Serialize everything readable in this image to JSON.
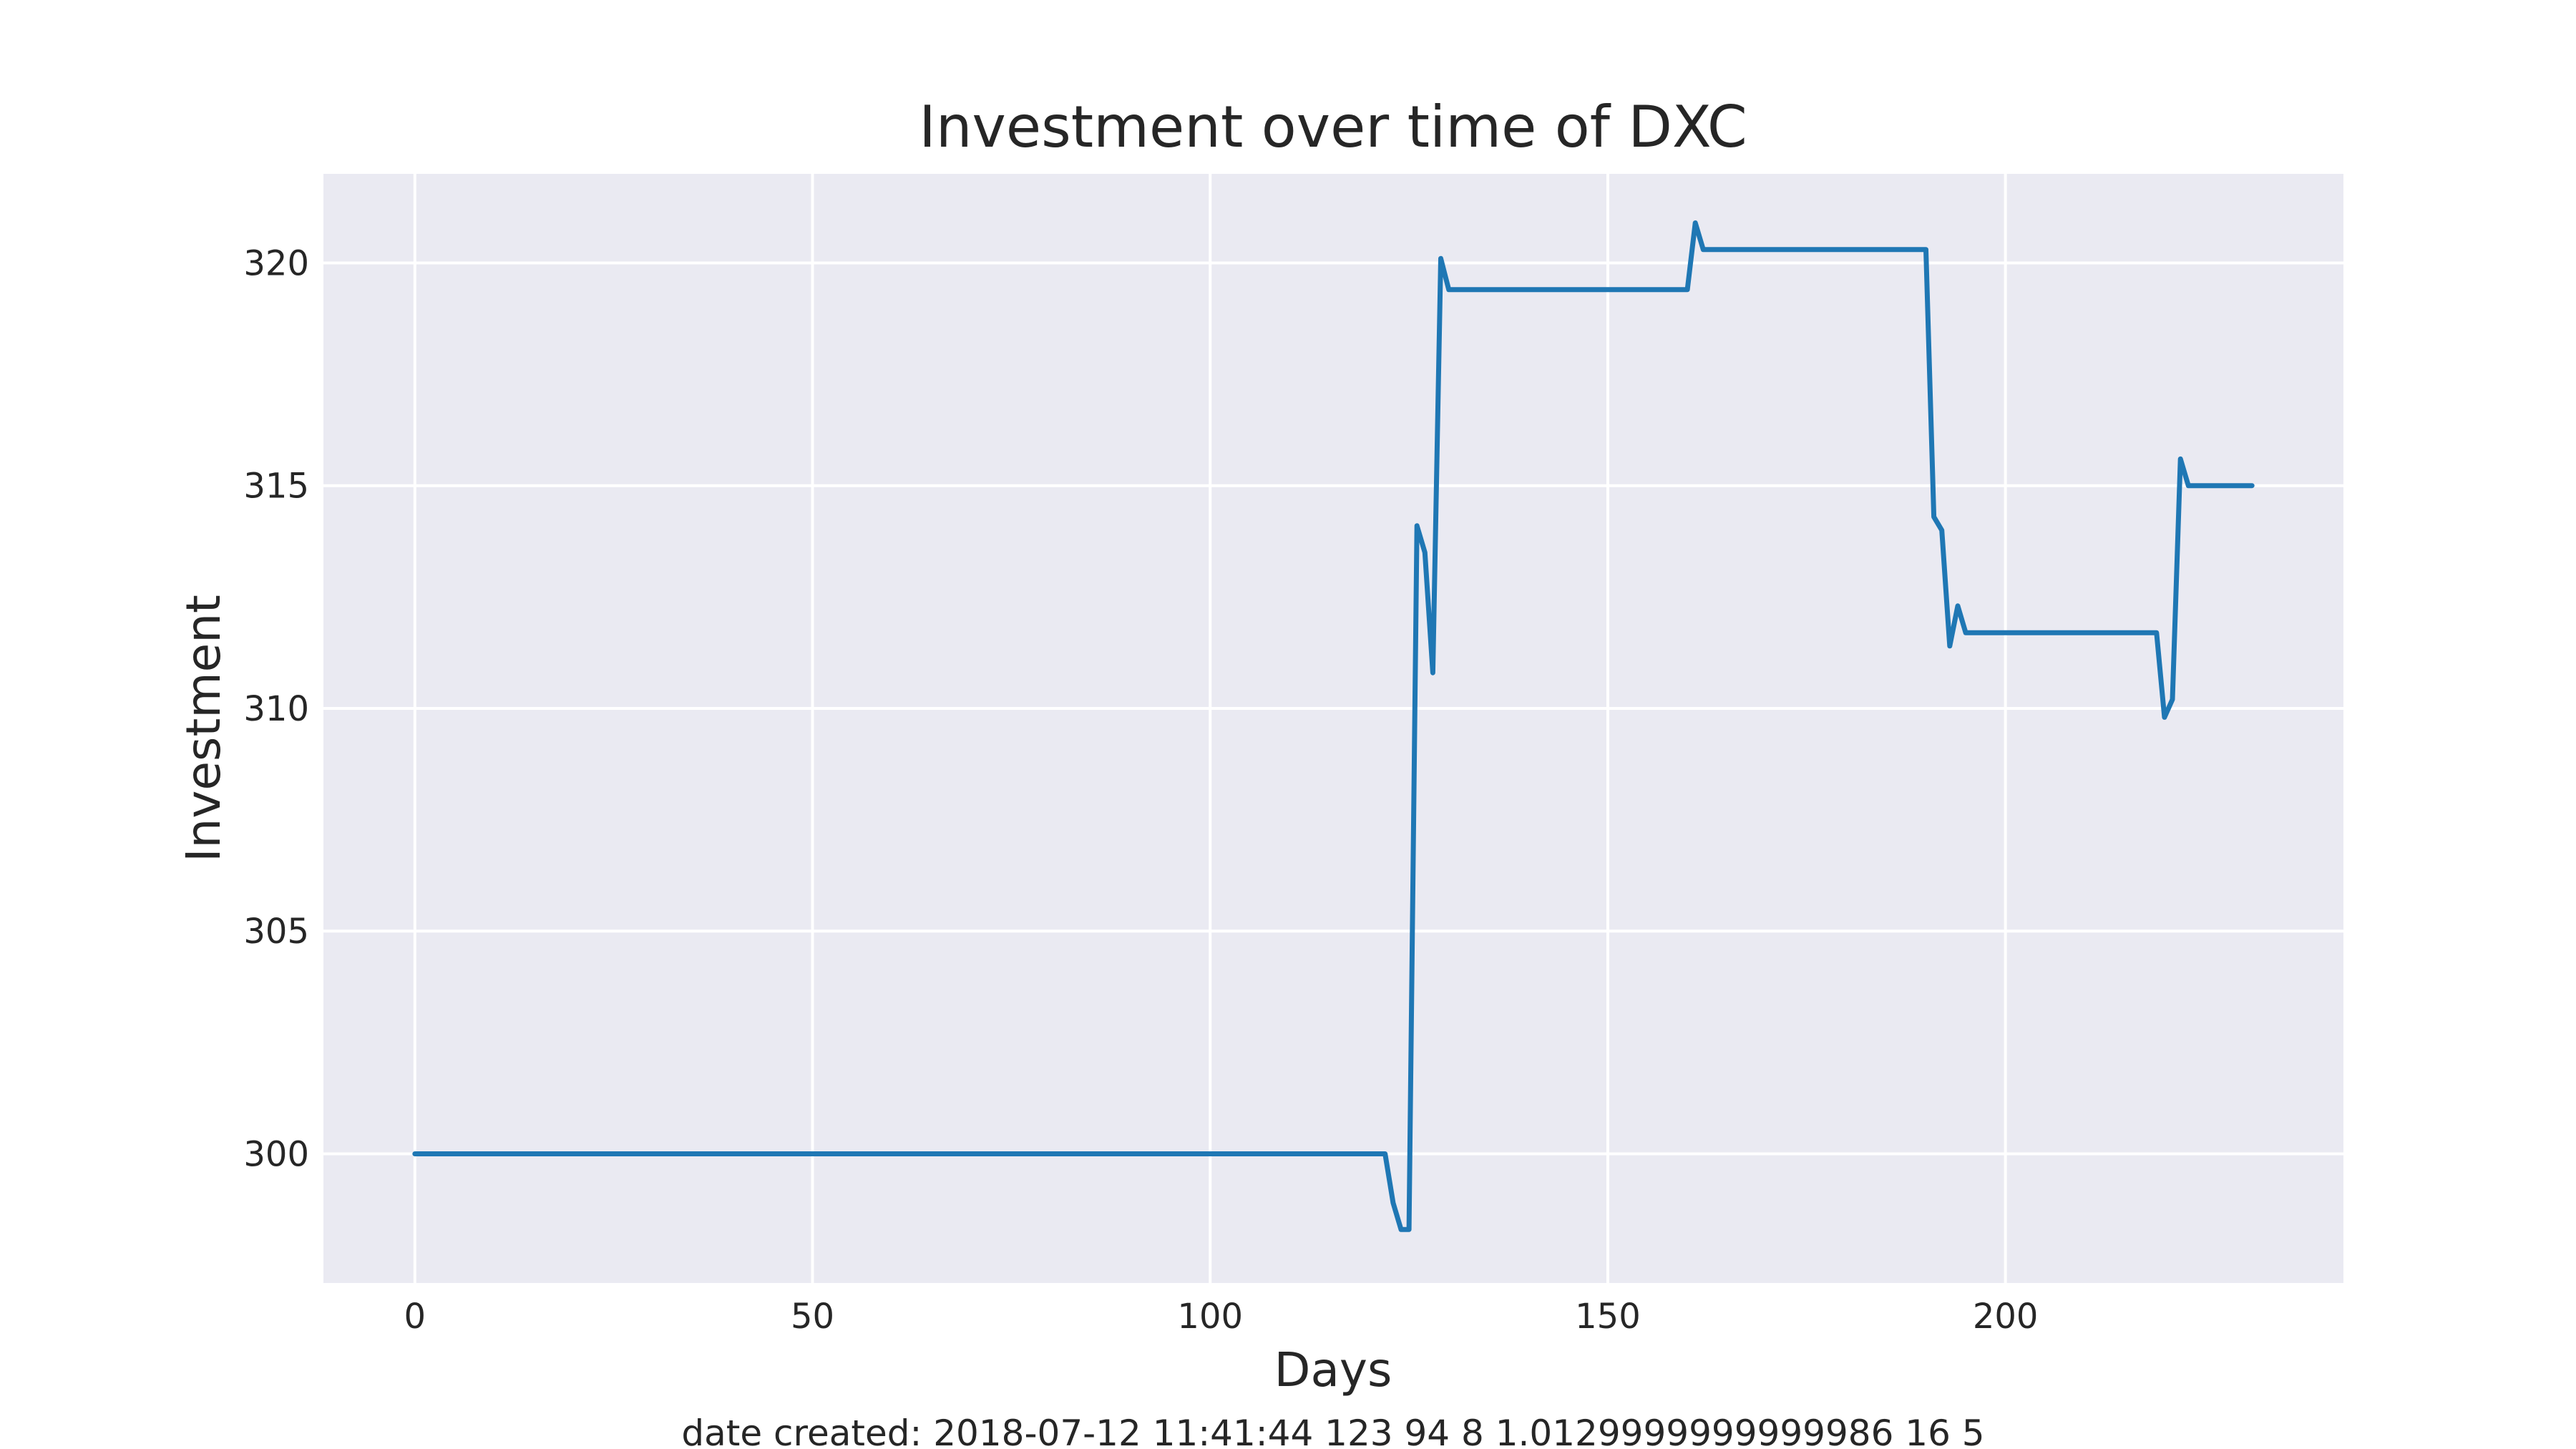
{
  "chart_data": {
    "type": "line",
    "title": "Investment over time of DXC",
    "xlabel": "Days",
    "ylabel": "Investment",
    "xlim": [
      -11.5,
      242.5
    ],
    "ylim": [
      297.1,
      322.0
    ],
    "xticks": [
      0,
      50,
      100,
      150,
      200
    ],
    "yticks": [
      300,
      305,
      310,
      315,
      320
    ],
    "xtick_labels": [
      "0",
      "50",
      "100",
      "150",
      "200"
    ],
    "ytick_labels": [
      "300",
      "305",
      "310",
      "315",
      "320"
    ],
    "grid": true,
    "legend": "none",
    "colors": {
      "background": "#eaeaf2",
      "grid": "#ffffff",
      "series": "#1f77b4"
    },
    "series": [
      {
        "x": [
          0,
          122,
          123,
          124,
          125,
          126,
          127,
          128,
          129,
          130,
          160,
          161,
          162,
          190,
          191,
          192,
          193,
          194,
          195,
          219,
          220,
          221,
          222,
          223,
          231
        ],
        "values": [
          300,
          300,
          298.9,
          298.3,
          298.3,
          314.1,
          313.5,
          310.8,
          320.1,
          319.4,
          319.4,
          320.9,
          320.3,
          320.3,
          314.3,
          314.0,
          311.4,
          312.3,
          311.7,
          311.7,
          309.8,
          310.2,
          315.6,
          315.0,
          315.0
        ]
      }
    ]
  },
  "footer": {
    "caption": "date created: 2018-07-12 11:41:44 123 94 8 1.0129999999999986 16 5"
  }
}
